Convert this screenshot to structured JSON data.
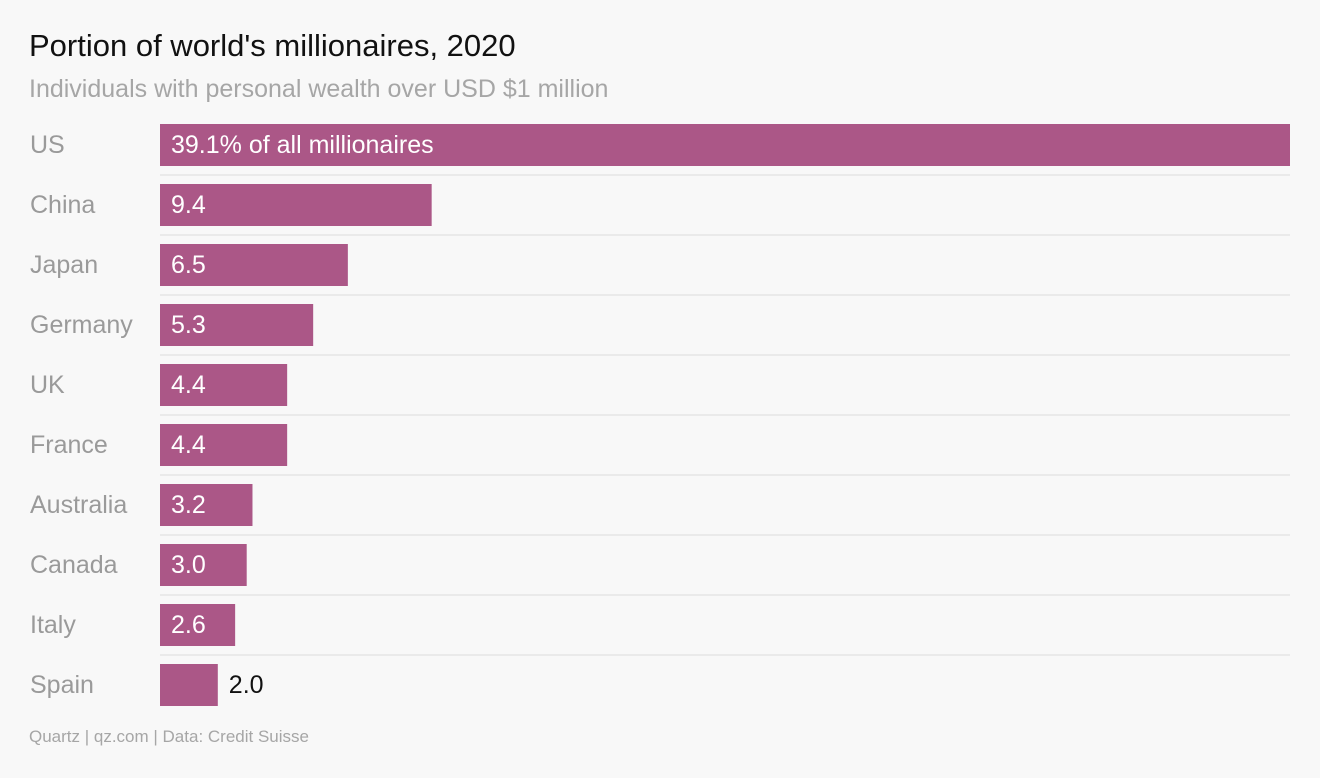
{
  "title": "Portion of world's millionaires, 2020",
  "subtitle": "Individuals with personal wealth over USD $1 million",
  "source": "Quartz | qz.com | Data: Credit Suisse",
  "colors": {
    "bar": "#ab5787",
    "background": "#f8f8f8",
    "label_inside": "#ffffff",
    "label_outside": "#111111",
    "category_text": "#9a9a9a",
    "divider": "#dddddd"
  },
  "chart_data": {
    "type": "bar",
    "orientation": "horizontal",
    "categories": [
      "US",
      "China",
      "Japan",
      "Germany",
      "UK",
      "France",
      "Australia",
      "Canada",
      "Italy",
      "Spain"
    ],
    "values": [
      39.1,
      9.4,
      6.5,
      5.3,
      4.4,
      4.4,
      3.2,
      3.0,
      2.6,
      2.0
    ],
    "value_labels": [
      "39.1% of all millionaires",
      "9.4",
      "6.5",
      "5.3",
      "4.4",
      "4.4",
      "3.2",
      "3.0",
      "2.6",
      "2.0"
    ],
    "xlim": [
      0,
      39.1
    ],
    "grid": false
  }
}
